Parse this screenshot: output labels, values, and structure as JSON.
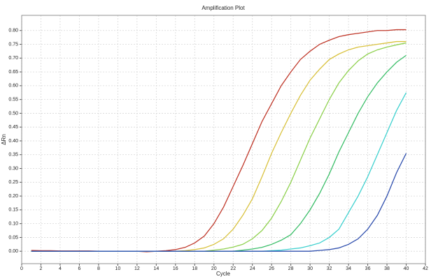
{
  "chart_data": {
    "type": "line",
    "title": "Amplification Plot",
    "xlabel": "Cycle",
    "ylabel": "ΔRn",
    "x": [
      1,
      2,
      3,
      4,
      5,
      6,
      7,
      8,
      9,
      10,
      11,
      12,
      13,
      14,
      15,
      16,
      17,
      18,
      19,
      20,
      21,
      22,
      23,
      24,
      25,
      26,
      27,
      28,
      29,
      30,
      31,
      32,
      33,
      34,
      35,
      36,
      37,
      38,
      39,
      40
    ],
    "series": [
      {
        "color": "#c0392b",
        "values": [
          0.003,
          0.002,
          0.002,
          0.001,
          0.001,
          0.001,
          0.001,
          0,
          0,
          0,
          0,
          0,
          -0.002,
          0,
          0.002,
          0.006,
          0.014,
          0.03,
          0.055,
          0.1,
          0.16,
          0.235,
          0.31,
          0.39,
          0.47,
          0.535,
          0.6,
          0.65,
          0.695,
          0.725,
          0.75,
          0.765,
          0.778,
          0.785,
          0.79,
          0.795,
          0.8,
          0.8,
          0.803,
          0.803
        ]
      },
      {
        "color": "#d9c23e",
        "values": [
          0,
          0,
          0,
          0,
          0,
          0,
          0,
          0,
          0,
          0,
          0,
          0,
          0,
          0,
          0,
          0,
          0.002,
          0.006,
          0.012,
          0.025,
          0.045,
          0.08,
          0.13,
          0.19,
          0.27,
          0.355,
          0.43,
          0.5,
          0.565,
          0.62,
          0.66,
          0.695,
          0.715,
          0.73,
          0.74,
          0.745,
          0.75,
          0.755,
          0.76,
          0.76
        ]
      },
      {
        "color": "#8fd14f",
        "values": [
          0,
          0,
          0,
          0,
          0,
          0,
          0,
          0,
          0,
          0,
          0,
          0,
          0,
          0,
          0,
          0,
          0,
          0,
          0,
          0.004,
          0.008,
          0.015,
          0.025,
          0.045,
          0.075,
          0.12,
          0.18,
          0.25,
          0.33,
          0.41,
          0.48,
          0.55,
          0.61,
          0.655,
          0.69,
          0.715,
          0.73,
          0.74,
          0.748,
          0.755
        ]
      },
      {
        "color": "#3cbf6a",
        "values": [
          0,
          0,
          0,
          0,
          0,
          0,
          0,
          0,
          0,
          0,
          0,
          0,
          0,
          0,
          0,
          0,
          0,
          0,
          0,
          0,
          0,
          0,
          0.004,
          0.008,
          0.014,
          0.025,
          0.04,
          0.06,
          0.1,
          0.15,
          0.21,
          0.28,
          0.36,
          0.43,
          0.5,
          0.56,
          0.61,
          0.65,
          0.685,
          0.71
        ]
      },
      {
        "color": "#3fd1cf",
        "values": [
          0,
          0,
          0,
          0,
          0,
          0,
          0,
          0,
          0,
          0,
          0,
          0,
          0,
          0,
          0,
          0,
          0,
          0,
          0,
          0,
          0,
          0,
          0,
          0,
          0,
          0.002,
          0.004,
          0.008,
          0.012,
          0.02,
          0.03,
          0.05,
          0.08,
          0.14,
          0.2,
          0.27,
          0.35,
          0.43,
          0.51,
          0.575
        ]
      },
      {
        "color": "#2f4fae",
        "values": [
          0,
          0,
          0,
          0,
          0,
          0,
          0,
          0,
          0,
          0,
          0,
          0,
          0,
          0,
          0,
          0,
          0,
          0,
          0,
          0,
          0,
          0,
          0,
          0,
          0,
          0,
          0,
          0,
          0,
          0,
          0.003,
          0.006,
          0.012,
          0.025,
          0.045,
          0.08,
          0.13,
          0.2,
          0.285,
          0.355
        ]
      }
    ],
    "xlim": [
      0,
      42
    ],
    "xticks": [
      0,
      2,
      4,
      6,
      8,
      10,
      12,
      14,
      16,
      18,
      20,
      22,
      24,
      26,
      28,
      30,
      32,
      34,
      36,
      38,
      40,
      42
    ],
    "ylim": [
      -0.045,
      0.855
    ],
    "yticks": [
      {
        "value": 0,
        "label": "0.00"
      },
      {
        "value": 0.05,
        "label": "0.05"
      },
      {
        "value": 0.1,
        "label": "0.10"
      },
      {
        "value": 0.15,
        "label": "0.15"
      },
      {
        "value": 0.2,
        "label": "0.20"
      },
      {
        "value": 0.25,
        "label": "0.25"
      },
      {
        "value": 0.3,
        "label": "0.30"
      },
      {
        "value": 0.35,
        "label": "0.35"
      },
      {
        "value": 0.4,
        "label": "0.40"
      },
      {
        "value": 0.45,
        "label": "0.45"
      },
      {
        "value": 0.5,
        "label": "0.50"
      },
      {
        "value": 0.55,
        "label": "0.55"
      },
      {
        "value": 0.6,
        "label": "0.60"
      },
      {
        "value": 0.65,
        "label": "0.65"
      },
      {
        "value": 0.7,
        "label": "0.70"
      },
      {
        "value": 0.75,
        "label": "0.75"
      },
      {
        "value": 0.8,
        "label": "0.80"
      }
    ],
    "grid": true
  }
}
